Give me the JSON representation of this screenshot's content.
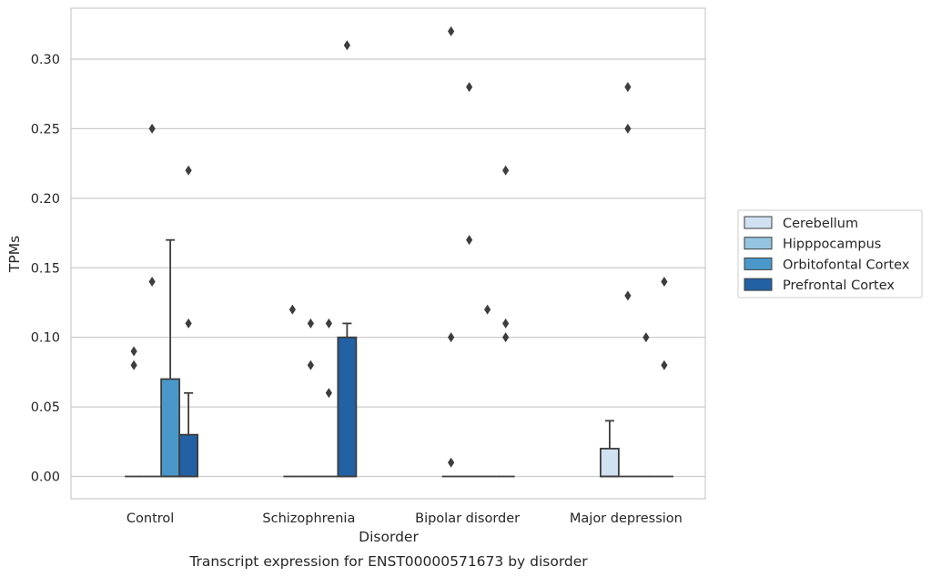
{
  "chart_data": {
    "type": "box",
    "caption": "Transcript expression for ENST00000571673 by disorder",
    "xlabel": "Disorder",
    "ylabel": "TPMs",
    "ylim": [
      -0.016,
      0.337
    ],
    "yticks": [
      0.0,
      0.05,
      0.1,
      0.15,
      0.2,
      0.25,
      0.3
    ],
    "ytick_labels": [
      "0.00",
      "0.05",
      "0.10",
      "0.15",
      "0.20",
      "0.25",
      "0.30"
    ],
    "grid": "horizontal",
    "legend_position": "right",
    "categories": [
      "Control",
      "Schizophrenia",
      "Bipolar disorder",
      "Major depression"
    ],
    "series": [
      {
        "name": "Cerebellum",
        "color": "#d0e1f2",
        "boxes": [
          {
            "q1": 0.0,
            "median": 0.0,
            "q3": 0.0,
            "whisker_low": 0.0,
            "whisker_high": 0.0,
            "outliers": [
              0.08,
              0.09
            ]
          },
          {
            "q1": 0.0,
            "median": 0.0,
            "q3": 0.0,
            "whisker_low": 0.0,
            "whisker_high": 0.0,
            "outliers": [
              0.12
            ]
          },
          {
            "q1": 0.0,
            "median": 0.0,
            "q3": 0.0,
            "whisker_low": 0.0,
            "whisker_high": 0.0,
            "outliers": [
              0.01,
              0.1,
              0.32
            ]
          },
          {
            "q1": 0.0,
            "median": 0.0,
            "q3": 0.02,
            "whisker_low": 0.0,
            "whisker_high": 0.04,
            "outliers": []
          }
        ]
      },
      {
        "name": "Hipppocampus",
        "color": "#94c4df",
        "boxes": [
          {
            "q1": 0.0,
            "median": 0.0,
            "q3": 0.0,
            "whisker_low": 0.0,
            "whisker_high": 0.0,
            "outliers": [
              0.14,
              0.25
            ]
          },
          {
            "q1": 0.0,
            "median": 0.0,
            "q3": 0.0,
            "whisker_low": 0.0,
            "whisker_high": 0.0,
            "outliers": [
              0.08,
              0.11
            ]
          },
          {
            "q1": 0.0,
            "median": 0.0,
            "q3": 0.0,
            "whisker_low": 0.0,
            "whisker_high": 0.0,
            "outliers": [
              0.17,
              0.28
            ]
          },
          {
            "q1": 0.0,
            "median": 0.0,
            "q3": 0.0,
            "whisker_low": 0.0,
            "whisker_high": 0.0,
            "outliers": [
              0.13,
              0.25,
              0.28
            ]
          }
        ]
      },
      {
        "name": "Orbitofontal Cortex",
        "color": "#4a98c9",
        "boxes": [
          {
            "q1": 0.0,
            "median": 0.0,
            "q3": 0.07,
            "whisker_low": 0.0,
            "whisker_high": 0.17,
            "outliers": []
          },
          {
            "q1": 0.0,
            "median": 0.0,
            "q3": 0.0,
            "whisker_low": 0.0,
            "whisker_high": 0.0,
            "outliers": [
              0.06,
              0.11
            ]
          },
          {
            "q1": 0.0,
            "median": 0.0,
            "q3": 0.0,
            "whisker_low": 0.0,
            "whisker_high": 0.0,
            "outliers": [
              0.12
            ]
          },
          {
            "q1": 0.0,
            "median": 0.0,
            "q3": 0.0,
            "whisker_low": 0.0,
            "whisker_high": 0.0,
            "outliers": [
              0.1
            ]
          }
        ]
      },
      {
        "name": "Prefrontal Cortex",
        "color": "#2261a4",
        "boxes": [
          {
            "q1": 0.0,
            "median": 0.0,
            "q3": 0.03,
            "whisker_low": 0.0,
            "whisker_high": 0.06,
            "outliers": [
              0.11,
              0.22
            ]
          },
          {
            "q1": 0.0,
            "median": 0.0,
            "q3": 0.1,
            "whisker_low": 0.0,
            "whisker_high": 0.11,
            "outliers": [
              0.31
            ]
          },
          {
            "q1": 0.0,
            "median": 0.0,
            "q3": 0.0,
            "whisker_low": 0.0,
            "whisker_high": 0.0,
            "outliers": [
              0.1,
              0.11,
              0.22
            ]
          },
          {
            "q1": 0.0,
            "median": 0.0,
            "q3": 0.0,
            "whisker_low": 0.0,
            "whisker_high": 0.0,
            "outliers": [
              0.08,
              0.14
            ]
          }
        ]
      }
    ]
  }
}
